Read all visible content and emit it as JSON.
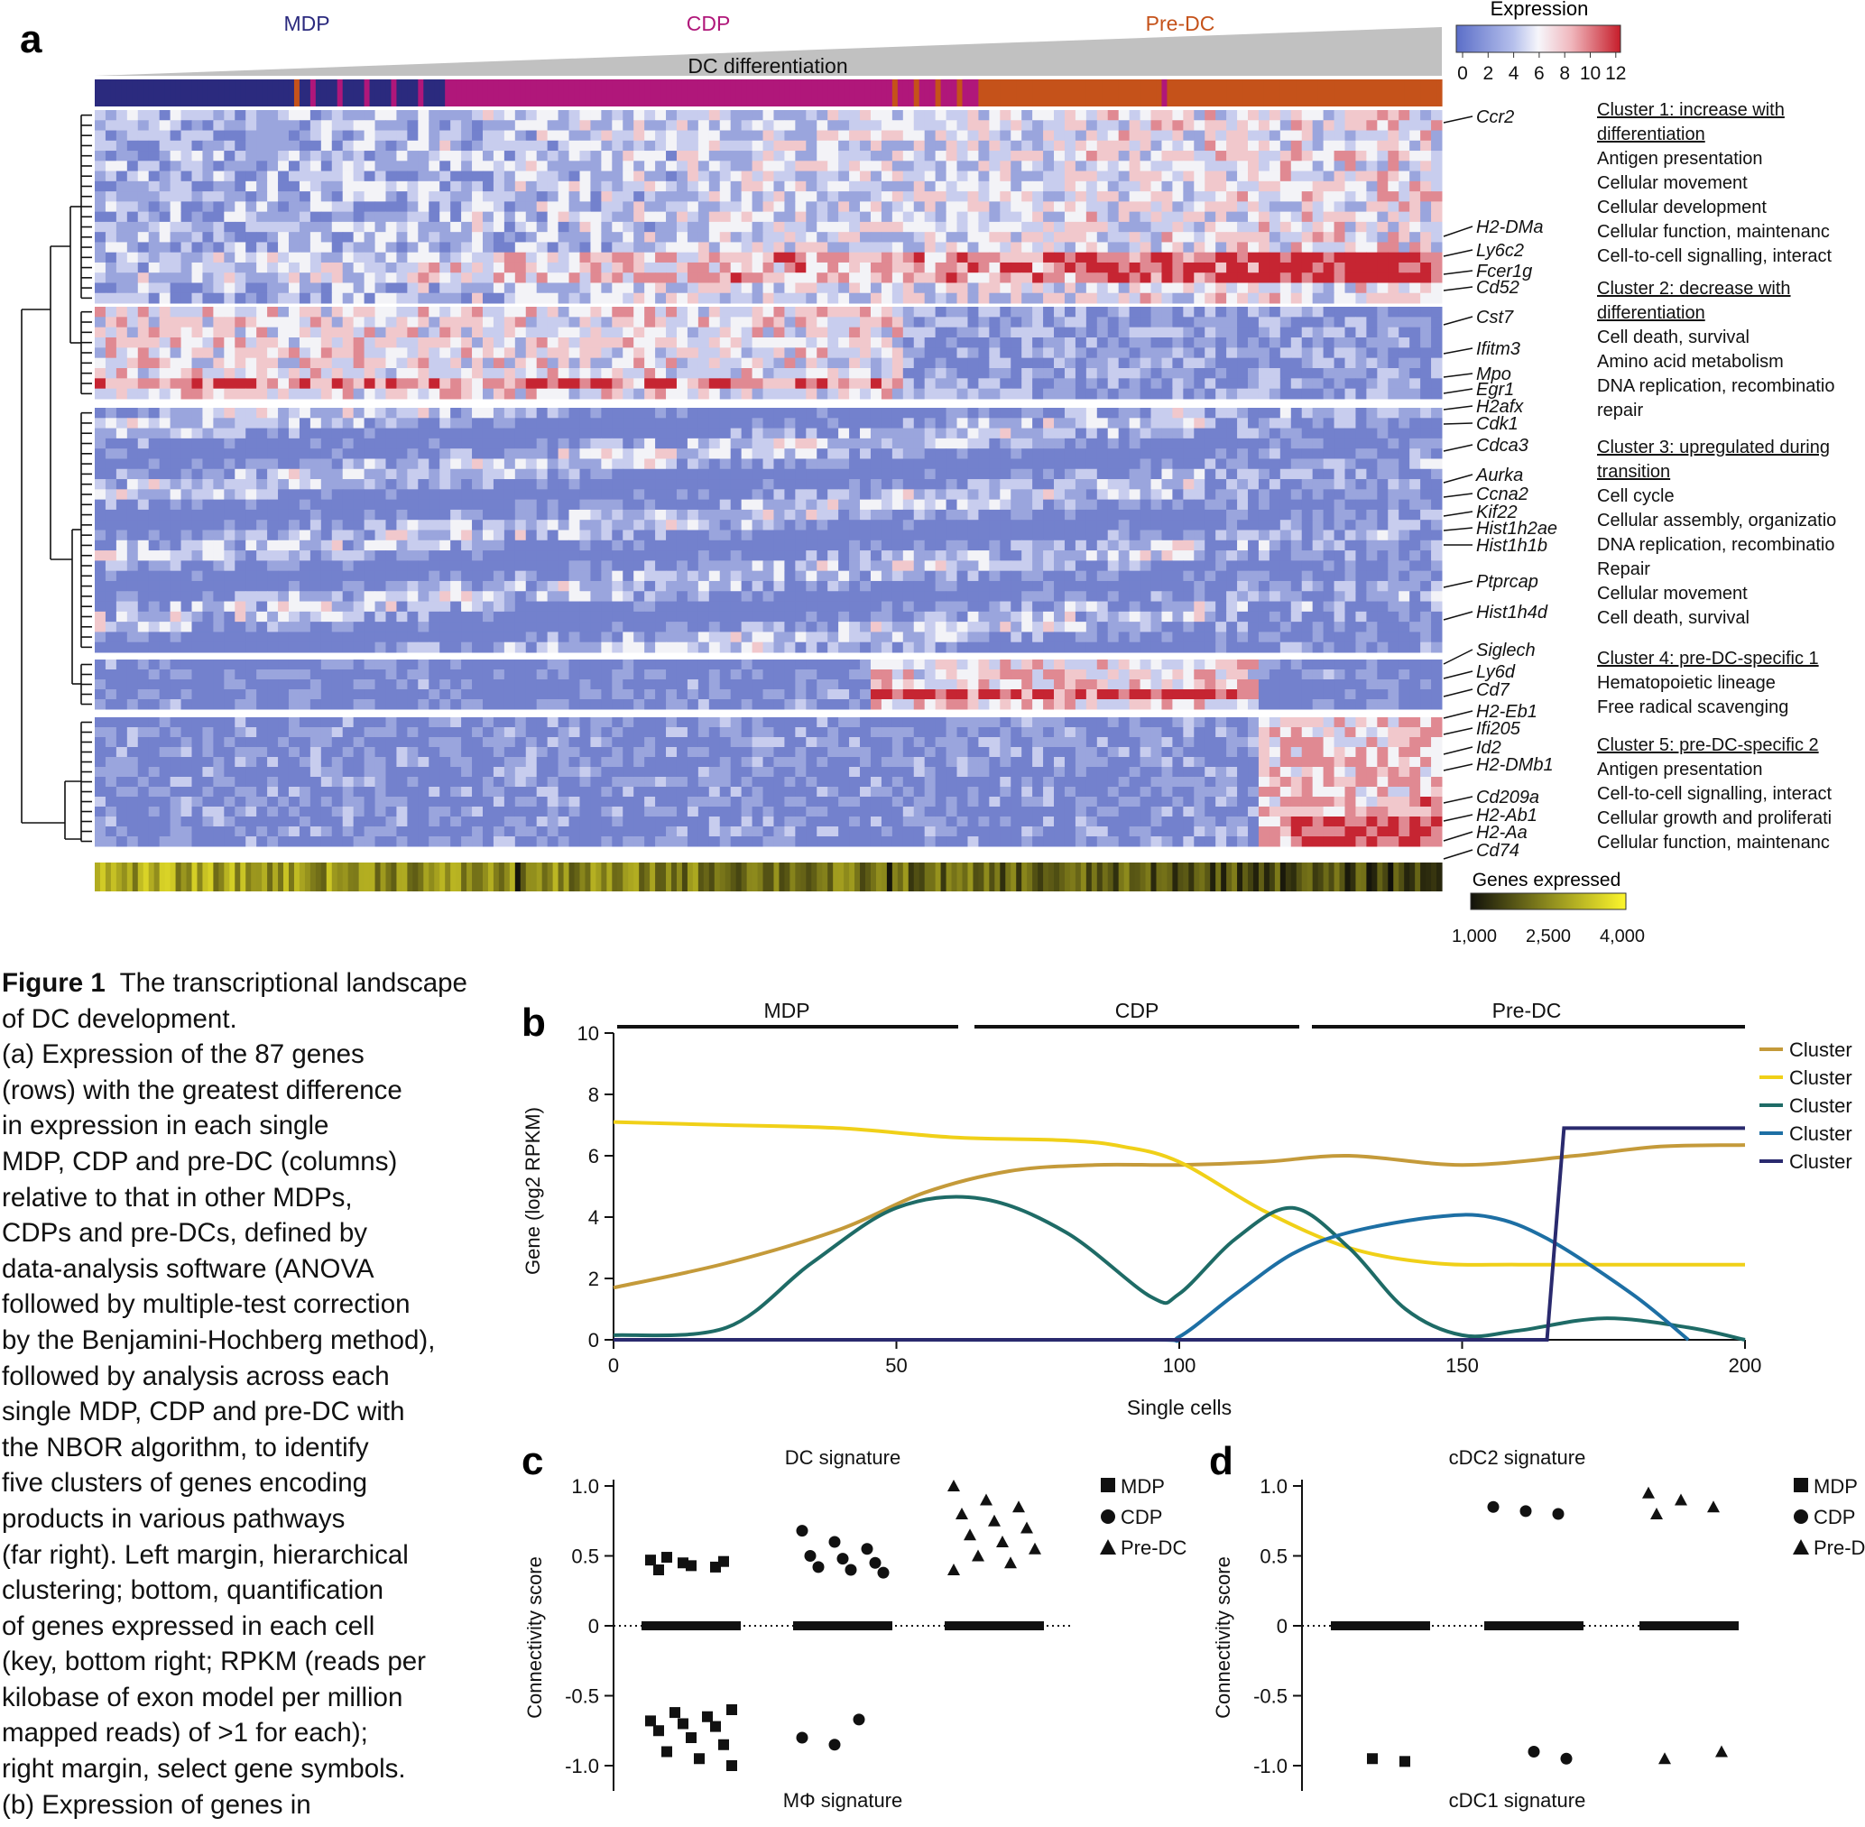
{
  "figure": {
    "panel_a": {
      "letter": "a",
      "stage_labels": [
        {
          "text": "MDP",
          "color": "#2b2a7e"
        },
        {
          "text": "CDP",
          "color": "#b0177a"
        },
        {
          "text": "Pre-DC",
          "color": "#c5521a"
        }
      ],
      "diff_label": "DC differentiation",
      "expression_key": {
        "title": "Expression",
        "ticks": [
          "0",
          "2",
          "4",
          "6",
          "8",
          "10",
          "12"
        ]
      },
      "genes_key": {
        "title": "Genes expressed",
        "ticks": [
          "1,000",
          "2,500",
          "4,000"
        ]
      },
      "gene_labels": [
        "Ccr2",
        "H2-DMa",
        "Ly6c2",
        "Fcer1g",
        "Cd52",
        "Cst7",
        "Ifitm3",
        "Mpo",
        "Egr1",
        "H2afx",
        "Cdk1",
        "Cdca3",
        "Aurka",
        "Ccna2",
        "Kif22",
        "Hist1h2ae",
        "Hist1h1b",
        "Ptprcap",
        "Hist1h4d",
        "Siglech",
        "Ly6d",
        "Cd7",
        "H2-Eb1",
        "Ifi205",
        "Id2",
        "H2-DMb1",
        "Cd209a",
        "H2-Ab1",
        "H2-Aa",
        "Cd74"
      ],
      "clusters": [
        {
          "title": [
            "Cluster 1: increase with",
            "differentiation"
          ],
          "items": [
            "Antigen presentation",
            "Cellular movement",
            "Cellular development",
            "Cellular function, maintenanc",
            "Cell-to-cell signalling, interact"
          ]
        },
        {
          "title": [
            "Cluster 2: decrease with",
            "differentiation"
          ],
          "items": [
            "Cell death, survival",
            "Amino acid metabolism",
            "DNA replication, recombinatio",
            "repair"
          ]
        },
        {
          "title": [
            "Cluster 3: upregulated during",
            "transition"
          ],
          "items": [
            "Cell cycle",
            "Cellular assembly, organizatio",
            "DNA replication, recombinatio",
            "Repair",
            "Cellular movement",
            "Cell death, survival"
          ]
        },
        {
          "title": [
            "Cluster 4: pre-DC-specific 1"
          ],
          "items": [
            "Hematopoietic lineage",
            "Free radical scavenging"
          ]
        },
        {
          "title": [
            "Cluster 5: pre-DC-specific 2"
          ],
          "items": [
            "Antigen presentation",
            "Cell-to-cell signalling, interact",
            "Cellular growth and proliferati",
            "Cellular function, maintenanc"
          ]
        }
      ]
    },
    "panel_b": {
      "letter": "b",
      "stage_labels": [
        "MDP",
        "CDP",
        "Pre-DC"
      ],
      "legend_label": "Cluster",
      "legend_colors": [
        "#c49a3a",
        "#f0d018",
        "#1e6b66",
        "#1d6fa4",
        "#2a2a6e"
      ]
    },
    "panel_c": {
      "letter": "c",
      "title": "DC signature",
      "bottom_label": "MΦ signature",
      "legend": [
        "MDP",
        "CDP",
        "Pre-DC"
      ]
    },
    "panel_d": {
      "letter": "d",
      "title": "cDC2 signature",
      "bottom_label": "cDC1 signature",
      "legend": [
        "MDP",
        "CDP",
        "Pre-D"
      ]
    }
  },
  "caption": {
    "title": "Figure 1",
    "title_rest": "The transcriptional landscape of DC development.",
    "lines": [
      "(a) Expression of the 87 genes",
      "(rows) with the greatest difference",
      "in expression in each single",
      "MDP, CDP and pre-DC (columns)",
      "relative to that in other MDPs,",
      "CDPs and pre-DCs, defined by",
      "data-analysis software (ANOVA",
      "followed by multiple-test correction",
      "by the Benjamini-Hochberg method),",
      "followed by analysis across each",
      "single MDP, CDP and pre-DC with",
      "the NBOR algorithm, to identify",
      "five clusters of genes encoding",
      "products in various pathways",
      "(far right). Left margin, hierarchical",
      "clustering; bottom, quantification",
      "of genes expressed in each cell",
      "(key, bottom right; RPKM (reads per",
      "kilobase of exon model per million",
      "mapped reads) of >1 for each);",
      "right margin, select gene symbols.",
      "(b) Expression of genes in"
    ]
  },
  "chart_data": [
    {
      "type": "line",
      "panel": "b",
      "xlabel": "Single cells",
      "ylabel": "Gene  (log2 RPKM)",
      "xlim": [
        0,
        200
      ],
      "ylim": [
        0,
        10
      ],
      "xticks": [
        0,
        50,
        100,
        150,
        200
      ],
      "yticks": [
        0,
        2,
        4,
        6,
        8,
        10
      ],
      "series": [
        {
          "name": "Cluster",
          "color": "#c49a3a",
          "x": [
            0,
            20,
            40,
            55,
            70,
            85,
            100,
            115,
            130,
            150,
            170,
            185,
            200
          ],
          "y": [
            1.7,
            2.5,
            3.6,
            4.8,
            5.5,
            5.7,
            5.7,
            5.8,
            6.0,
            5.7,
            6.0,
            6.3,
            6.35
          ]
        },
        {
          "name": "Cluster",
          "color": "#f0d018",
          "x": [
            0,
            20,
            40,
            60,
            80,
            90,
            100,
            115,
            130,
            145,
            160,
            180,
            200
          ],
          "y": [
            7.1,
            7.0,
            6.9,
            6.6,
            6.5,
            6.3,
            5.8,
            4.2,
            3.0,
            2.5,
            2.45,
            2.45,
            2.45
          ]
        },
        {
          "name": "Cluster",
          "color": "#1e6b66",
          "x": [
            0,
            20,
            35,
            50,
            65,
            80,
            95,
            100,
            110,
            120,
            130,
            140,
            150,
            160,
            175,
            190,
            200
          ],
          "y": [
            0.15,
            0.4,
            2.5,
            4.3,
            4.6,
            3.5,
            1.4,
            1.5,
            3.3,
            4.3,
            3.0,
            1.0,
            0.15,
            0.3,
            0.7,
            0.4,
            0.0
          ]
        },
        {
          "name": "Cluster",
          "color": "#1d6fa4",
          "x": [
            0,
            50,
            95,
            100,
            110,
            120,
            130,
            145,
            155,
            165,
            180,
            190
          ],
          "y": [
            0.0,
            0.0,
            0.0,
            0.1,
            1.5,
            2.8,
            3.5,
            4.0,
            4.0,
            3.3,
            1.5,
            0.0
          ]
        },
        {
          "name": "Cluster",
          "color": "#2a2a6e",
          "x": [
            0,
            50,
            100,
            150,
            160,
            165,
            168,
            180,
            190,
            200
          ],
          "y": [
            0.0,
            0.0,
            0.0,
            0.0,
            0.0,
            0.0,
            6.9,
            6.9,
            6.9,
            6.9
          ]
        }
      ]
    },
    {
      "type": "scatter",
      "panel": "c",
      "title": "DC signature",
      "xlabel": "MΦ signature",
      "ylabel": "Connectivity score",
      "ylim": [
        -1.1,
        1.05
      ],
      "yticks": [
        "1.0",
        "0.5",
        "0",
        "-0.5",
        "-1.0"
      ],
      "series": [
        {
          "name": "MDP",
          "marker": "square",
          "values": [
            0.47,
            0.45,
            0.42,
            0.4,
            0.43,
            0.46,
            0.49,
            0,
            -0.6,
            -0.62,
            -0.65,
            -0.68,
            -0.7,
            -0.72,
            -0.75,
            -0.8,
            -0.85,
            -0.9,
            -0.95,
            -1.0
          ]
        },
        {
          "name": "CDP",
          "marker": "circle",
          "values": [
            0.68,
            0.6,
            0.55,
            0.5,
            0.48,
            0.45,
            0.42,
            0.4,
            0.38,
            0,
            -0.67,
            -0.8,
            -0.85
          ]
        },
        {
          "name": "Pre-DC",
          "marker": "triangle",
          "values": [
            1.0,
            0.9,
            0.85,
            0.8,
            0.75,
            0.7,
            0.65,
            0.6,
            0.55,
            0.5,
            0.45,
            0.4,
            0
          ]
        }
      ]
    },
    {
      "type": "scatter",
      "panel": "d",
      "title": "cDC2 signature",
      "xlabel": "cDC1 signature",
      "ylabel": "Connectivity score",
      "ylim": [
        -1.1,
        1.05
      ],
      "yticks": [
        "1.0",
        "0.5",
        "0",
        "-0.5",
        "-1.0"
      ],
      "series": [
        {
          "name": "MDP",
          "marker": "square",
          "values": [
            0,
            -0.95,
            -0.97
          ]
        },
        {
          "name": "CDP",
          "marker": "circle",
          "values": [
            0.85,
            0.82,
            0.8,
            0,
            -0.9,
            -0.95
          ]
        },
        {
          "name": "Pre-D",
          "marker": "triangle",
          "values": [
            0.95,
            0.9,
            0.85,
            0.8,
            0,
            -0.9,
            -0.95
          ]
        }
      ]
    }
  ]
}
